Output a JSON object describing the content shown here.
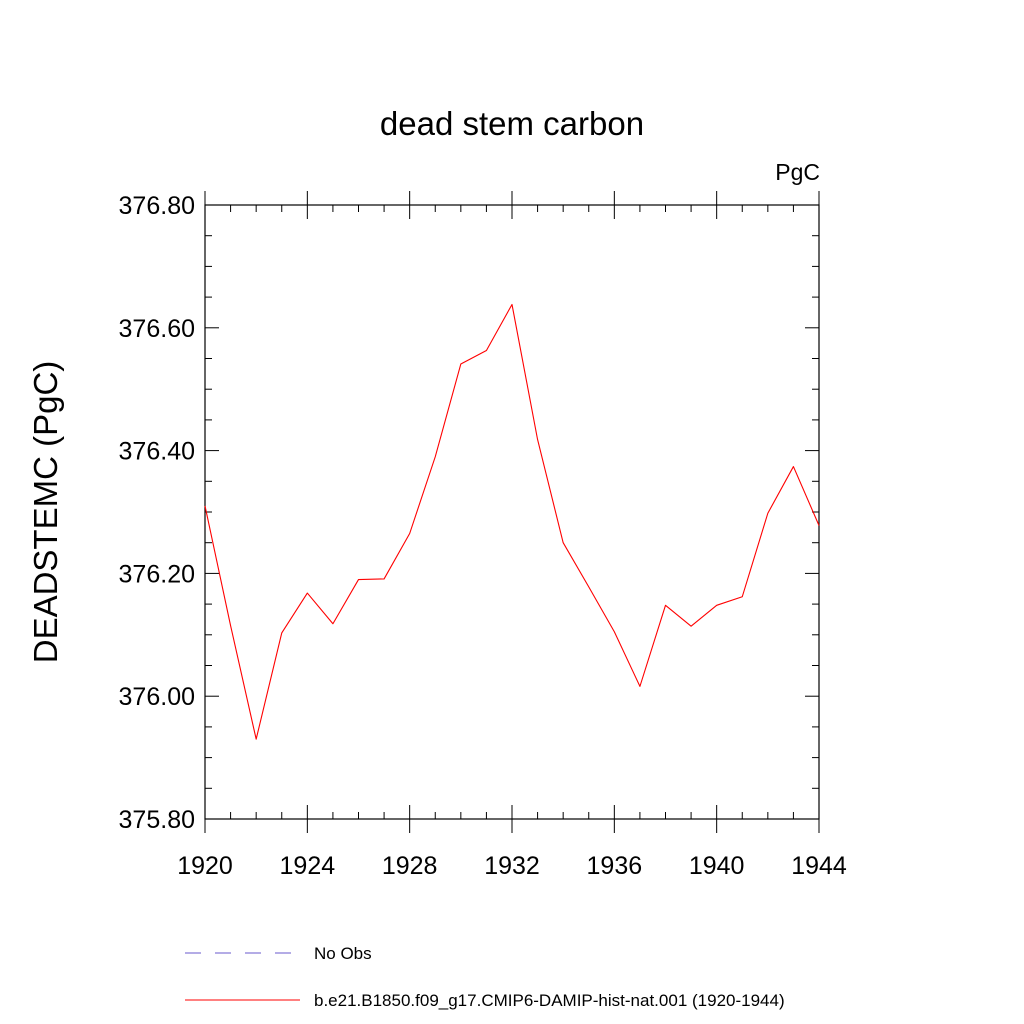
{
  "chart_data": {
    "type": "line",
    "title": "dead stem carbon",
    "units_label": "PgC",
    "ylabel": "DEADSTEMC  (PgC)",
    "xlabel": "",
    "xlim": [
      1920,
      1944
    ],
    "ylim": [
      375.8,
      376.8
    ],
    "x_ticks": [
      1920,
      1924,
      1928,
      1932,
      1936,
      1940,
      1944
    ],
    "x_tick_labels": [
      "1920",
      "1924",
      "1928",
      "1932",
      "1936",
      "1940",
      "1944"
    ],
    "y_ticks": [
      375.8,
      376.0,
      376.2,
      376.4,
      376.6,
      376.8
    ],
    "y_tick_labels": [
      "375.80",
      "376.00",
      "376.20",
      "376.40",
      "376.60",
      "376.80"
    ],
    "x": [
      1920,
      1921,
      1922,
      1923,
      1924,
      1925,
      1926,
      1927,
      1928,
      1929,
      1930,
      1931,
      1932,
      1933,
      1934,
      1935,
      1936,
      1937,
      1938,
      1939,
      1940,
      1941,
      1942,
      1943,
      1944
    ],
    "series": [
      {
        "name": "b.e21.B1850.f09_g17.CMIP6-DAMIP-hist-nat.001 (1920-1944)",
        "color": "#ff0000",
        "values": [
          376.31,
          376.115,
          375.93,
          376.103,
          376.168,
          376.118,
          376.19,
          376.191,
          376.265,
          376.39,
          376.541,
          376.563,
          376.638,
          376.418,
          376.25,
          376.178,
          376.105,
          376.016,
          376.148,
          376.114,
          376.148,
          376.162,
          376.298,
          376.374,
          376.278
        ]
      }
    ],
    "legend": {
      "placement": "bottom",
      "entries": [
        {
          "label": "No Obs",
          "color": "#6a5acd",
          "style": "dashed"
        },
        {
          "label": "b.e21.B1850.f09_g17.CMIP6-DAMIP-hist-nat.001 (1920-1944)",
          "color": "#ff0000",
          "style": "solid"
        }
      ]
    }
  }
}
